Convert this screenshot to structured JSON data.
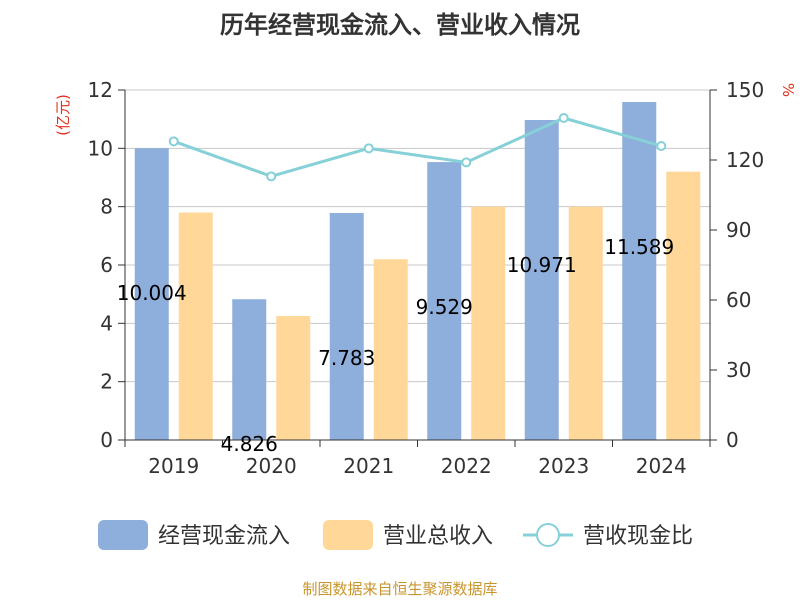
{
  "chart_data": {
    "type": "bar",
    "title": "历年经营现金流入、营业收入情况",
    "categories": [
      "2019",
      "2020",
      "2021",
      "2022",
      "2023",
      "2024"
    ],
    "series": [
      {
        "name": "经营现金流入",
        "kind": "bar",
        "axis": "left",
        "color": "#8eaedb",
        "values": [
          10.004,
          4.826,
          7.783,
          9.529,
          10.971,
          11.589
        ],
        "labels": [
          "10.004",
          "4.826",
          "7.783",
          "9.529",
          "10.971",
          "11.589"
        ]
      },
      {
        "name": "营业总收入",
        "kind": "bar",
        "axis": "left",
        "color": "#ffd899",
        "values": [
          7.8,
          4.25,
          6.2,
          8.0,
          8.0,
          9.2
        ]
      },
      {
        "name": "营收现金比",
        "kind": "line",
        "axis": "right",
        "color": "#86d0d8",
        "values": [
          128,
          113,
          125,
          119,
          138,
          126
        ]
      }
    ],
    "left_axis": {
      "unit": "(亿元)",
      "ylim": [
        0,
        12
      ],
      "ticks": [
        "0",
        "2",
        "4",
        "6",
        "8",
        "10",
        "12"
      ]
    },
    "right_axis": {
      "unit": "%",
      "ylim": [
        0,
        150
      ],
      "ticks": [
        "0",
        "30",
        "60",
        "90",
        "120",
        "150"
      ]
    },
    "grid": true,
    "legend_position": "bottom"
  },
  "source": "制图数据来自恒生聚源数据库"
}
